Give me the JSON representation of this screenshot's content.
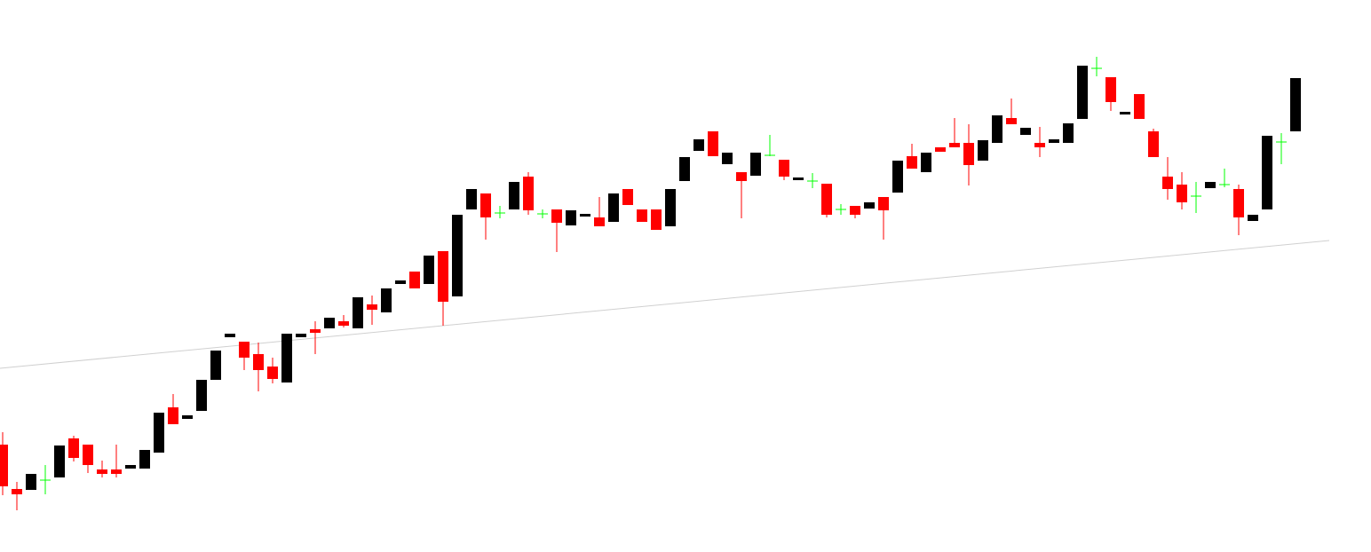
{
  "chart_data": {
    "type": "candlestick",
    "up_color": "#000000",
    "down_color": "#ff0000",
    "doji_color": "#00ff00",
    "xlim": [
      -0.1875,
      96.3125
    ],
    "ylim": [
      0,
      622
    ],
    "open": [
      121,
      71,
      70,
      81,
      84,
      128,
      121,
      93,
      93,
      94,
      94,
      112,
      163,
      150,
      159,
      194,
      242,
      237,
      223,
      209,
      191,
      242,
      251,
      252,
      260,
      252,
      279,
      270,
      302,
      316,
      302,
      339,
      288,
      386,
      404,
      382,
      386,
      423,
      381,
      386,
      368,
      378,
      377,
      372,
      409,
      386,
      386,
      367,
      418,
      452,
      474,
      437,
      428,
      424,
      447,
      442,
      419,
      418,
      415,
      386,
      390,
      387,
      400,
      405,
      446,
      428,
      456,
      461,
      461,
      441,
      461,
      489,
      470,
      461,
      461,
      461,
      488,
      545,
      535,
      493,
      516,
      474,
      423,
      414,
      401,
      410,
      414,
      409,
      373,
      386,
      462,
      474
    ],
    "high": [
      135,
      79,
      88,
      98,
      120,
      131,
      121,
      103,
      121,
      98,
      115,
      157,
      178,
      154,
      194,
      227,
      246,
      237,
      236,
      219,
      246,
      246,
      260,
      264,
      267,
      287,
      289,
      297,
      306,
      316,
      334,
      339,
      380,
      409,
      404,
      390,
      417,
      428,
      386,
      386,
      385,
      381,
      400,
      404,
      409,
      386,
      386,
      409,
      445,
      465,
      474,
      450,
      428,
      450,
      470,
      442,
      422,
      427,
      415,
      392,
      390,
      394,
      400,
      441,
      460,
      450,
      456,
      489,
      482,
      464,
      492,
      511,
      478,
      479,
      465,
      483,
      548,
      558,
      535,
      496,
      516,
      477,
      445,
      428,
      417,
      417,
      432,
      414,
      380,
      469,
      472,
      534
    ],
    "low": [
      64,
      47,
      70,
      65,
      84,
      102,
      89,
      84,
      84,
      94,
      94,
      112,
      144,
      150,
      159,
      194,
      242,
      205,
      181,
      190,
      191,
      242,
      223,
      252,
      253,
      252,
      256,
      270,
      302,
      297,
      302,
      255,
      288,
      386,
      352,
      376,
      386,
      380,
      376,
      338,
      368,
      378,
      367,
      372,
      391,
      372,
      363,
      367,
      418,
      452,
      446,
      437,
      376,
      424,
      446,
      419,
      419,
      410,
      377,
      380,
      376,
      387,
      352,
      405,
      432,
      428,
      451,
      456,
      413,
      441,
      461,
      482,
      470,
      445,
      461,
      461,
      488,
      536,
      497,
      493,
      488,
      445,
      397,
      386,
      382,
      410,
      411,
      357,
      373,
      386,
      437,
      474
    ],
    "close": [
      74,
      65,
      88,
      81,
      120,
      106,
      98,
      88,
      88,
      98,
      115,
      157,
      144,
      154,
      194,
      227,
      246,
      219,
      205,
      195,
      246,
      246,
      247,
      264,
      255,
      287,
      273,
      297,
      306,
      297,
      334,
      282,
      380,
      409,
      377,
      382,
      417,
      385,
      381,
      371,
      385,
      381,
      367,
      404,
      391,
      372,
      363,
      409,
      445,
      465,
      446,
      450,
      418,
      450,
      447,
      423,
      422,
      418,
      380,
      386,
      380,
      394,
      385,
      441,
      432,
      450,
      451,
      456,
      436,
      464,
      492,
      482,
      478,
      456,
      465,
      483,
      548,
      545,
      507,
      496,
      488,
      445,
      409,
      394,
      401,
      417,
      414,
      377,
      380,
      469,
      462,
      534
    ],
    "trendline": {
      "x": [
        -0.1875,
        93.375
      ],
      "y": [
        207,
        351
      ],
      "color": "#d0d0d0"
    }
  }
}
